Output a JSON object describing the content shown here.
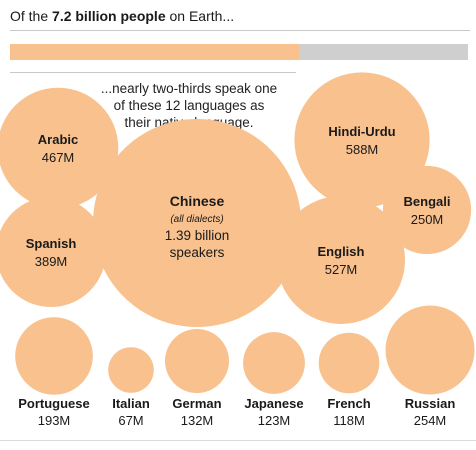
{
  "header": {
    "prefix": "Of the ",
    "highlight": "7.2 billion people",
    "suffix": " on Earth..."
  },
  "subtitle": "...nearly two-thirds speak one of these 12 languages as their native language.",
  "colors": {
    "bubble": "#f8c18e",
    "bar_fill": "#f8c18e",
    "bar_track": "#cfcfcf",
    "text": "#1a1a1a"
  },
  "chart_data": {
    "type": "bubble",
    "title": "",
    "progress": {
      "total": "7.2 billion people",
      "fraction": 0.63
    },
    "bubbles": [
      {
        "name": "Chinese",
        "note": "(all dialects)",
        "value_label": "1.39 billion speakers",
        "value_millions": 1390
      },
      {
        "name": "Hindi-Urdu",
        "value_label": "588M",
        "value_millions": 588
      },
      {
        "name": "English",
        "value_label": "527M",
        "value_millions": 527
      },
      {
        "name": "Arabic",
        "value_label": "467M",
        "value_millions": 467
      },
      {
        "name": "Spanish",
        "value_label": "389M",
        "value_millions": 389
      },
      {
        "name": "Russian",
        "value_label": "254M",
        "value_millions": 254
      },
      {
        "name": "Bengali",
        "value_label": "250M",
        "value_millions": 250
      },
      {
        "name": "Portuguese",
        "value_label": "193M",
        "value_millions": 193
      },
      {
        "name": "German",
        "value_label": "132M",
        "value_millions": 132
      },
      {
        "name": "Japanese",
        "value_label": "123M",
        "value_millions": 123
      },
      {
        "name": "French",
        "value_label": "118M",
        "value_millions": 118
      },
      {
        "name": "Italian",
        "value_label": "67M",
        "value_millions": 67
      }
    ]
  }
}
